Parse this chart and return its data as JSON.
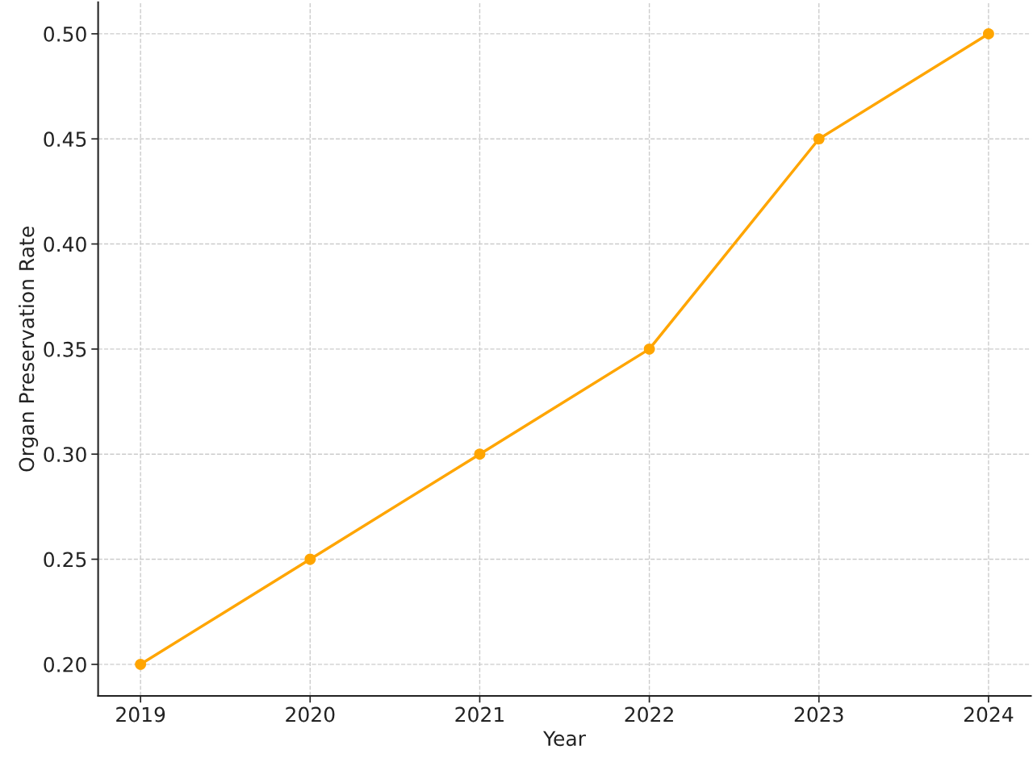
{
  "chart_data": {
    "type": "line",
    "xlabel": "Year",
    "ylabel": "Organ Preservation Rate",
    "x": [
      2019,
      2020,
      2021,
      2022,
      2023,
      2024
    ],
    "series": [
      {
        "color": "#ffa500",
        "values": [
          0.2,
          0.25,
          0.3,
          0.35,
          0.45,
          0.5
        ]
      }
    ],
    "xlim": [
      2018.75,
      2024.25
    ],
    "xticks": [
      2019,
      2020,
      2021,
      2022,
      2023,
      2024
    ],
    "ylim": [
      0.185,
      0.515
    ],
    "yticks": [
      {
        "value": 0.2,
        "label": "0.20"
      },
      {
        "value": 0.25,
        "label": "0.25"
      },
      {
        "value": 0.3,
        "label": "0.30"
      },
      {
        "value": 0.35,
        "label": "0.35"
      },
      {
        "value": 0.4,
        "label": "0.40"
      },
      {
        "value": 0.45,
        "label": "0.45"
      },
      {
        "value": 0.5,
        "label": "0.50"
      }
    ],
    "grid": true,
    "marker": "circle",
    "line_style": "solid",
    "legend": false
  }
}
